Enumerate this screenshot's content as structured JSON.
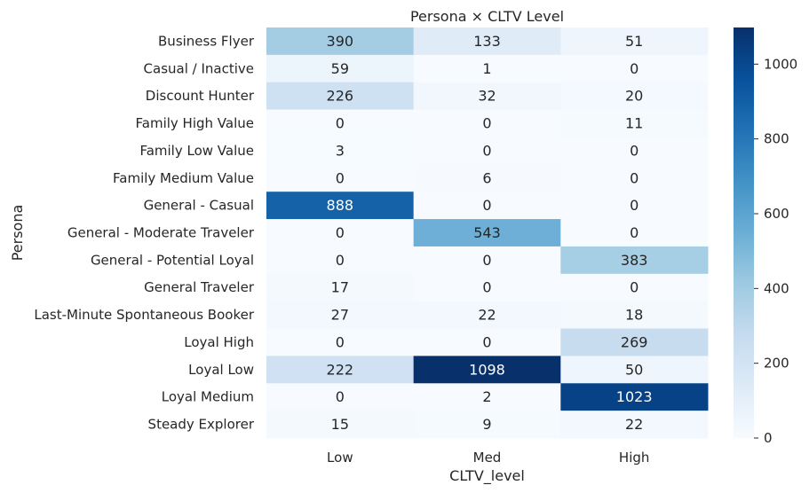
{
  "chart_data": {
    "type": "heatmap",
    "title": "Persona × CLTV Level",
    "xlabel": "CLTV_level",
    "ylabel": "Persona",
    "x_categories": [
      "Low",
      "Med",
      "High"
    ],
    "y_categories": [
      "Business Flyer",
      "Casual / Inactive",
      "Discount Hunter",
      "Family High Value",
      "Family Low Value",
      "Family Medium Value",
      "General - Casual",
      "General - Moderate Traveler",
      "General - Potential Loyal",
      "General Traveler",
      "Last-Minute Spontaneous Booker",
      "Loyal High",
      "Loyal Low",
      "Loyal Medium",
      "Steady Explorer"
    ],
    "values": [
      [
        390,
        133,
        51
      ],
      [
        59,
        1,
        0
      ],
      [
        226,
        32,
        20
      ],
      [
        0,
        0,
        11
      ],
      [
        3,
        0,
        0
      ],
      [
        0,
        6,
        0
      ],
      [
        888,
        0,
        0
      ],
      [
        0,
        543,
        0
      ],
      [
        0,
        0,
        383
      ],
      [
        17,
        0,
        0
      ],
      [
        27,
        22,
        18
      ],
      [
        0,
        0,
        269
      ],
      [
        222,
        1098,
        50
      ],
      [
        0,
        2,
        1023
      ],
      [
        15,
        9,
        22
      ]
    ],
    "colormap": "Blues",
    "colors": [
      "#f7fbff",
      "#deebf7",
      "#c6dbef",
      "#9ecae1",
      "#6baed6",
      "#4292c6",
      "#2171b5",
      "#08519c",
      "#08306b"
    ],
    "colorbar": {
      "min": 0,
      "max": 1098,
      "ticks": [
        0,
        200,
        400,
        600,
        800,
        1000
      ],
      "tick_labels": [
        "0",
        "200",
        "400",
        "600",
        "800",
        "1000"
      ]
    },
    "annotate": true,
    "grid": false
  }
}
